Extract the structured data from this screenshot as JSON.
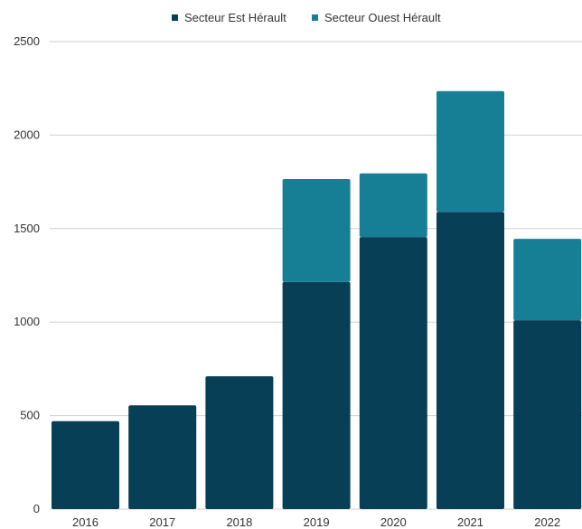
{
  "chart_data": {
    "type": "bar",
    "stacked": true,
    "categories": [
      "2016",
      "2017",
      "2018",
      "2019",
      "2020",
      "2021",
      "2022"
    ],
    "series": [
      {
        "name": "Secteur Est Hérault",
        "color": "#073f56",
        "values": [
          470,
          555,
          710,
          1215,
          1455,
          1590,
          1010
        ]
      },
      {
        "name": "Secteur Ouest Hérault",
        "color": "#167f95",
        "values": [
          0,
          0,
          0,
          550,
          340,
          645,
          435
        ]
      }
    ],
    "yticks": [
      "0",
      "500",
      "1000",
      "1500",
      "2000",
      "2500"
    ],
    "ylim": [
      0,
      2500
    ],
    "grid": true,
    "legend_position": "top-center"
  }
}
